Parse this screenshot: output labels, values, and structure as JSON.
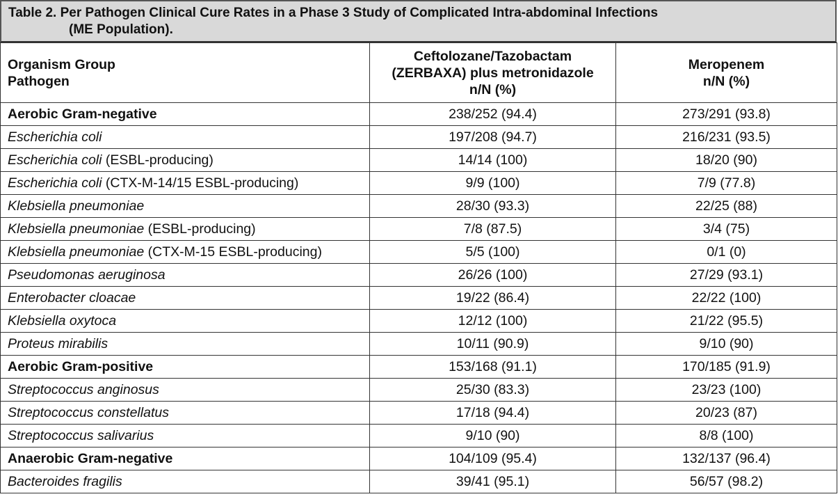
{
  "table": {
    "title_line1": "Table 2. Per Pathogen Clinical Cure Rates in a Phase 3 Study of Complicated Intra-abdominal Infections",
    "title_line2": "(ME Population).",
    "headers": {
      "col1_line1": "Organism Group",
      "col1_line2": "Pathogen",
      "col2_line1": "Ceftolozane/Tazobactam",
      "col2_line2": "(ZERBAXA) plus metronidazole",
      "col2_line3": "n/N (%)",
      "col3_line1": "Meropenem",
      "col3_line2": "n/N (%)"
    },
    "rows": [
      {
        "species": "Aerobic Gram-negative",
        "suffix": "",
        "group": true,
        "zerbaxa": "238/252 (94.4)",
        "meropenem": "273/291 (93.8)"
      },
      {
        "species": "Escherichia coli",
        "suffix": "",
        "group": false,
        "zerbaxa": "197/208 (94.7)",
        "meropenem": "216/231 (93.5)"
      },
      {
        "species": "Escherichia coli",
        "suffix": " (ESBL-producing)",
        "group": false,
        "zerbaxa": "14/14 (100)",
        "meropenem": "18/20 (90)"
      },
      {
        "species": "Escherichia coli",
        "suffix": " (CTX-M-14/15 ESBL-producing)",
        "group": false,
        "zerbaxa": "9/9 (100)",
        "meropenem": "7/9 (77.8)"
      },
      {
        "species": "Klebsiella pneumoniae",
        "suffix": "",
        "group": false,
        "zerbaxa": "28/30 (93.3)",
        "meropenem": "22/25 (88)"
      },
      {
        "species": "Klebsiella pneumoniae",
        "suffix": " (ESBL-producing)",
        "group": false,
        "zerbaxa": "7/8 (87.5)",
        "meropenem": "3/4 (75)"
      },
      {
        "species": "Klebsiella pneumoniae",
        "suffix": " (CTX-M-15 ESBL-producing)",
        "group": false,
        "zerbaxa": "5/5 (100)",
        "meropenem": "0/1 (0)"
      },
      {
        "species": "Pseudomonas aeruginosa",
        "suffix": "",
        "group": false,
        "zerbaxa": "26/26 (100)",
        "meropenem": "27/29 (93.1)"
      },
      {
        "species": "Enterobacter cloacae",
        "suffix": "",
        "group": false,
        "zerbaxa": "19/22 (86.4)",
        "meropenem": "22/22 (100)"
      },
      {
        "species": "Klebsiella oxytoca",
        "suffix": "",
        "group": false,
        "zerbaxa": "12/12 (100)",
        "meropenem": "21/22 (95.5)"
      },
      {
        "species": "Proteus mirabilis",
        "suffix": "",
        "group": false,
        "zerbaxa": "10/11 (90.9)",
        "meropenem": "9/10 (90)"
      },
      {
        "species": "Aerobic Gram-positive",
        "suffix": "",
        "group": true,
        "zerbaxa": "153/168 (91.1)",
        "meropenem": "170/185 (91.9)"
      },
      {
        "species": "Streptococcus anginosus",
        "suffix": "",
        "group": false,
        "zerbaxa": "25/30 (83.3)",
        "meropenem": "23/23 (100)"
      },
      {
        "species": "Streptococcus constellatus",
        "suffix": "",
        "group": false,
        "zerbaxa": "17/18 (94.4)",
        "meropenem": "20/23 (87)"
      },
      {
        "species": "Streptococcus salivarius",
        "suffix": "",
        "group": false,
        "zerbaxa": "9/10 (90)",
        "meropenem": "8/8 (100)"
      },
      {
        "species": "Anaerobic Gram-negative",
        "suffix": "",
        "group": true,
        "zerbaxa": "104/109 (95.4)",
        "meropenem": "132/137 (96.4)"
      },
      {
        "species": "Bacteroides fragilis",
        "suffix": "",
        "group": false,
        "zerbaxa": "39/41 (95.1)",
        "meropenem": "56/57 (98.2)"
      }
    ]
  }
}
